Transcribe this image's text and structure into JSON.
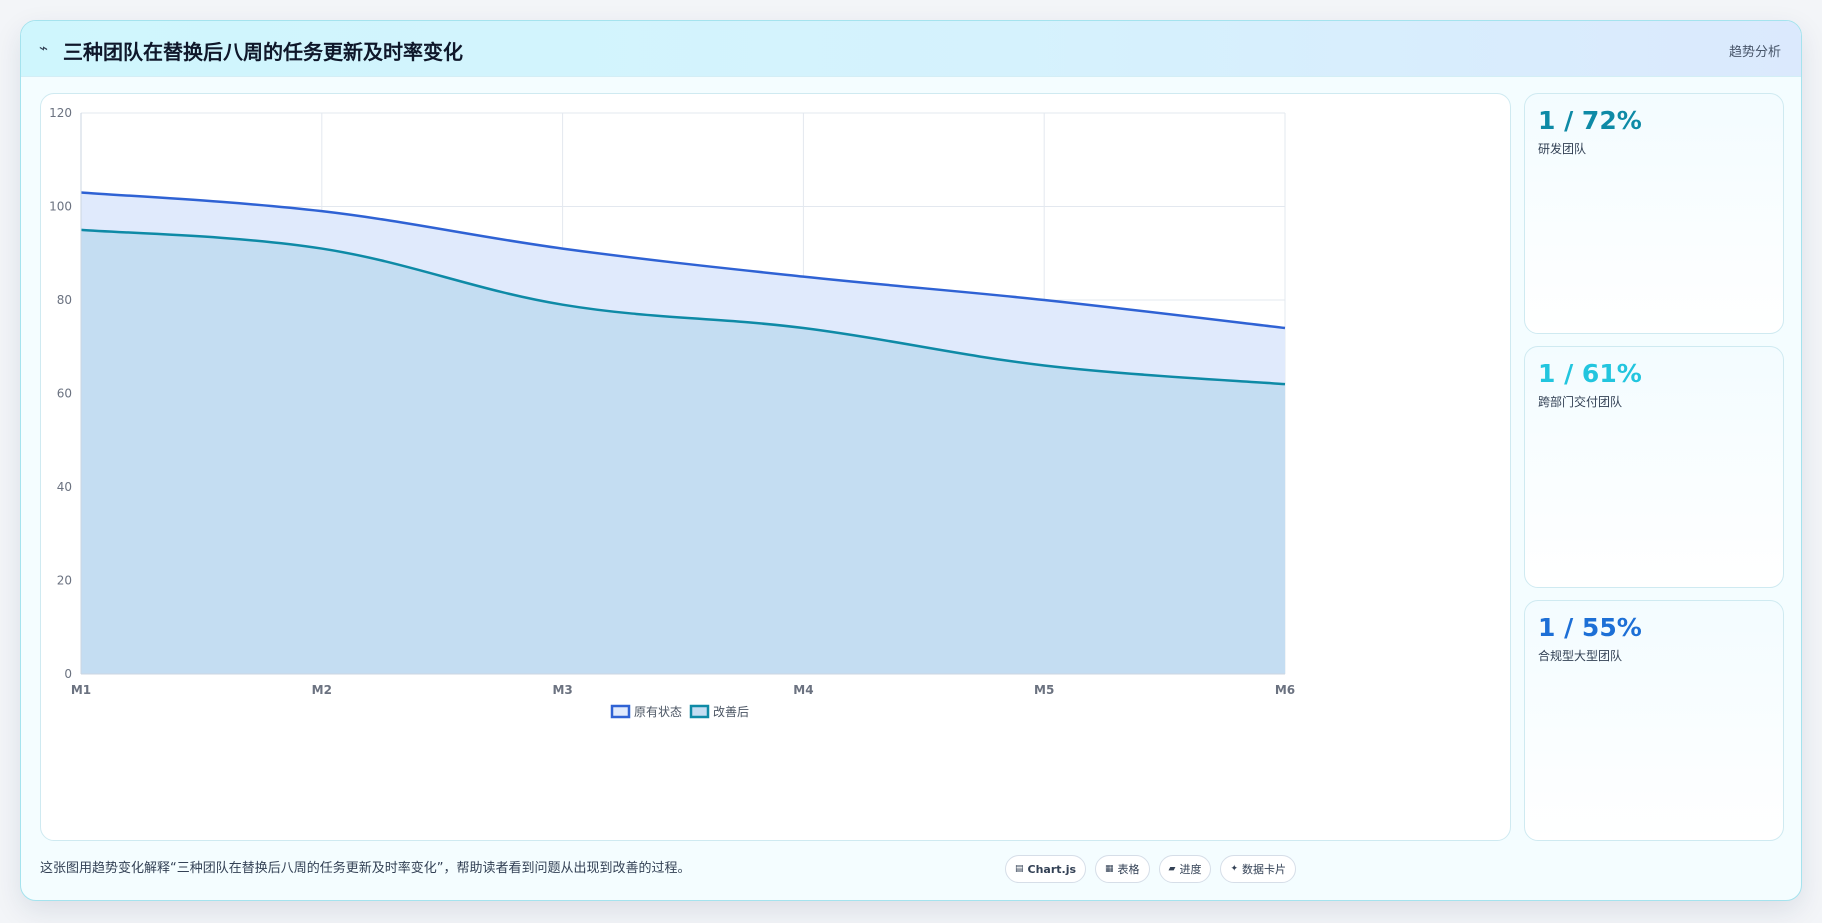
{
  "header": {
    "icon": "trend-icon",
    "icon_glyph": "⌁",
    "title": "三种团队在替换后八周的任务更新及时率变化",
    "tag": "趋势分析"
  },
  "chart_data": {
    "type": "area",
    "x": [
      "M1",
      "M2",
      "M3",
      "M4",
      "M5",
      "M6"
    ],
    "series": [
      {
        "name": "原有状态",
        "values": [
          103,
          99,
          91,
          85,
          80,
          74
        ],
        "color": "#2f62d4",
        "fill": "#e0eafc"
      },
      {
        "name": "改善后",
        "values": [
          95,
          91,
          79,
          74,
          66,
          62
        ],
        "color": "#0e8aa6",
        "fill": "#c4ddf2"
      }
    ],
    "ylim": [
      0,
      120
    ],
    "yticks": [
      "0",
      "20",
      "40",
      "60",
      "80",
      "100",
      "120"
    ],
    "grid": true,
    "legend": "bottom-center"
  },
  "stats": [
    {
      "value": "1 / 72%",
      "label": "研发团队",
      "color": "#0e8aa6"
    },
    {
      "value": "1 / 61%",
      "label": "跨部门交付团队",
      "color": "#22c5de"
    },
    {
      "value": "1 / 55%",
      "label": "合规型大型团队",
      "color": "#1d6fd6"
    }
  ],
  "footer": {
    "note": "这张图用趋势变化解释“三种团队在替换后八周的任务更新及时率变化”，帮助读者看到问题从出现到改善的过程。",
    "chips": [
      {
        "icon": "chart-icon",
        "glyph": "▤",
        "label": "Chart.js",
        "bold": true
      },
      {
        "icon": "table-icon",
        "glyph": "▦",
        "label": "表格",
        "bold": false
      },
      {
        "icon": "progress-icon",
        "glyph": "▰",
        "label": "进度",
        "bold": false
      },
      {
        "icon": "data-card-icon",
        "glyph": "✦",
        "label": "数据卡片",
        "bold": false
      }
    ]
  }
}
